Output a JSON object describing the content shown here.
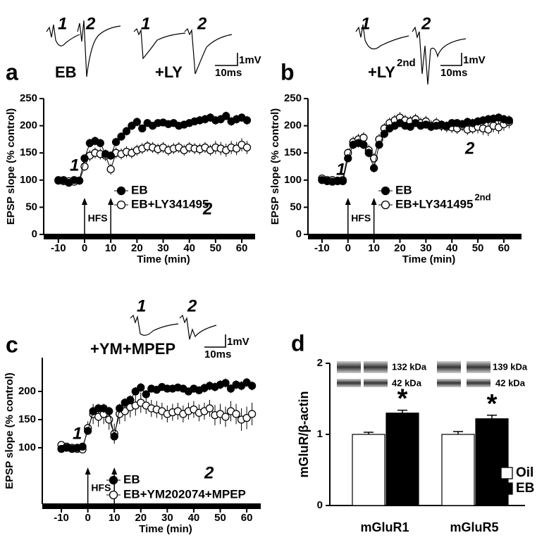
{
  "chart_data": [
    {
      "type": "line",
      "panel": "a",
      "x": [
        -10,
        -8,
        -6,
        -4,
        -2,
        0,
        2,
        4,
        6,
        8,
        10,
        12,
        14,
        16,
        18,
        20,
        22,
        24,
        26,
        28,
        30,
        32,
        34,
        36,
        38,
        40,
        42,
        44,
        46,
        48,
        50,
        52,
        54,
        56,
        58,
        60,
        62
      ],
      "xlim": [
        -15.6,
        65.1
      ],
      "ylim": [
        0,
        250
      ],
      "xticks": [
        -10,
        0,
        10,
        20,
        30,
        40,
        50,
        60
      ],
      "yticks": [
        0,
        50,
        100,
        150,
        200,
        250
      ],
      "xlabel": "Time (min)",
      "ylabel": "EPSP slope (% control)",
      "series": [
        {
          "name": "EB",
          "color": "#000000",
          "values": [
            99,
            100,
            95,
            100,
            99,
            140,
            168,
            172,
            168,
            148,
            145,
            170,
            180,
            190,
            200,
            207,
            195,
            205,
            200,
            205,
            206,
            203,
            205,
            200,
            202,
            205,
            208,
            210,
            212,
            215,
            210,
            212,
            218,
            208,
            212,
            215,
            210
          ],
          "errors": [
            4,
            4,
            4,
            4,
            4,
            6,
            8,
            8,
            8,
            8,
            8,
            8,
            8,
            8,
            8,
            8,
            7,
            7,
            7,
            7,
            7,
            7,
            7,
            7,
            7,
            7,
            7,
            8,
            8,
            8,
            8,
            8,
            8,
            8,
            8,
            8,
            8
          ]
        },
        {
          "name": "EB+LY341495",
          "color": "#ffffff",
          "values": [
            100,
            98,
            98,
            97,
            99,
            125,
            145,
            150,
            148,
            145,
            120,
            150,
            148,
            152,
            150,
            155,
            158,
            162,
            160,
            157,
            160,
            155,
            158,
            160,
            155,
            160,
            158,
            157,
            160,
            155,
            160,
            158,
            155,
            160,
            158,
            165,
            160
          ],
          "errors": [
            4,
            4,
            4,
            4,
            4,
            8,
            10,
            10,
            10,
            10,
            10,
            10,
            10,
            10,
            10,
            10,
            10,
            10,
            10,
            10,
            10,
            10,
            10,
            10,
            10,
            10,
            10,
            10,
            10,
            10,
            12,
            12,
            12,
            12,
            12,
            12,
            12
          ]
        }
      ],
      "stim_label": "HFS",
      "stim_times": [
        0,
        10
      ],
      "curve_labels": [
        "1",
        "2"
      ],
      "trace_numbers": [
        "1",
        "2",
        "1",
        "2"
      ],
      "trace_conditions": [
        "EB",
        "+LY"
      ],
      "scale_labels": [
        "1mV",
        "10ms"
      ]
    },
    {
      "type": "line",
      "panel": "b",
      "x": [
        -10,
        -8,
        -6,
        -4,
        -2,
        0,
        2,
        4,
        6,
        8,
        10,
        12,
        14,
        16,
        18,
        20,
        22,
        24,
        26,
        28,
        30,
        32,
        34,
        36,
        38,
        40,
        42,
        44,
        46,
        48,
        50,
        52,
        54,
        56,
        58,
        60,
        62
      ],
      "xlim": [
        -15.4,
        66.8
      ],
      "ylim": [
        0,
        250
      ],
      "xticks": [
        -10,
        0,
        10,
        20,
        30,
        40,
        50,
        60
      ],
      "yticks": [
        0,
        50,
        100,
        150,
        200,
        250
      ],
      "xlabel": "Time (min)",
      "ylabel": "EPSP slope (% control)",
      "series": [
        {
          "name": "EB",
          "color": "#000000",
          "values": [
            100,
            98,
            97,
            99,
            98,
            140,
            165,
            168,
            165,
            150,
            122,
            165,
            185,
            195,
            200,
            205,
            200,
            198,
            205,
            200,
            202,
            198,
            200,
            202,
            200,
            205,
            205,
            203,
            207,
            205,
            208,
            210,
            212,
            213,
            215,
            212,
            210
          ],
          "errors": [
            4,
            4,
            4,
            4,
            4,
            6,
            8,
            8,
            8,
            8,
            8,
            8,
            8,
            8,
            8,
            8,
            7,
            7,
            7,
            7,
            7,
            7,
            7,
            7,
            7,
            7,
            7,
            8,
            8,
            8,
            8,
            8,
            8,
            8,
            8,
            8,
            8
          ]
        },
        {
          "name": "EB+LY341495",
          "name_sup": "2nd",
          "color": "#ffffff",
          "values": [
            103,
            100,
            100,
            98,
            100,
            150,
            170,
            175,
            178,
            155,
            140,
            175,
            195,
            205,
            210,
            215,
            210,
            208,
            212,
            205,
            208,
            200,
            205,
            200,
            198,
            197,
            195,
            200,
            193,
            195,
            198,
            195,
            193,
            200,
            197,
            203,
            207
          ],
          "errors": [
            4,
            4,
            4,
            4,
            4,
            8,
            10,
            10,
            10,
            10,
            10,
            10,
            10,
            10,
            10,
            10,
            10,
            10,
            10,
            10,
            10,
            10,
            10,
            10,
            10,
            10,
            10,
            10,
            10,
            10,
            12,
            12,
            12,
            12,
            12,
            12,
            12
          ]
        }
      ],
      "stim_label": "HFS",
      "stim_times": [
        0,
        10
      ],
      "curve_labels": [
        "1",
        "2"
      ],
      "trace_numbers": [
        "1",
        "2"
      ],
      "trace_conditions": [
        "+LY"
      ],
      "condition_sup": "2nd",
      "scale_labels": [
        "1mV",
        "10ms"
      ]
    },
    {
      "type": "line",
      "panel": "c",
      "x": [
        -10,
        -8,
        -6,
        -4,
        -2,
        0,
        2,
        4,
        6,
        8,
        10,
        12,
        14,
        16,
        18,
        20,
        22,
        24,
        26,
        28,
        30,
        32,
        34,
        36,
        38,
        40,
        42,
        44,
        46,
        48,
        50,
        52,
        54,
        56,
        58,
        60,
        62
      ],
      "xlim": [
        -17.2,
        65.3
      ],
      "ylim": [
        0,
        260
      ],
      "xticks": [
        -10,
        0,
        10,
        20,
        30,
        40,
        50,
        60
      ],
      "yticks": [
        100,
        150,
        200
      ],
      "xlabel": "Time (min)",
      "ylabel": "EPSP slope (% control)",
      "series": [
        {
          "name": "EB",
          "color": "#000000",
          "values": [
            98,
            100,
            98,
            100,
            102,
            130,
            165,
            170,
            170,
            165,
            120,
            170,
            180,
            185,
            200,
            207,
            195,
            205,
            203,
            208,
            205,
            205,
            207,
            205,
            200,
            205,
            202,
            206,
            210,
            208,
            212,
            215,
            205,
            212,
            210,
            216,
            210
          ],
          "errors": [
            4,
            4,
            4,
            4,
            4,
            6,
            8,
            8,
            8,
            8,
            8,
            8,
            8,
            8,
            8,
            8,
            7,
            7,
            7,
            7,
            7,
            7,
            7,
            7,
            7,
            7,
            7,
            8,
            8,
            8,
            8,
            8,
            8,
            8,
            8,
            8,
            8
          ]
        },
        {
          "name": "EB+YM202074+MPEP",
          "color": "#ffffff",
          "values": [
            105,
            102,
            100,
            98,
            97,
            135,
            160,
            155,
            160,
            150,
            125,
            160,
            165,
            172,
            175,
            180,
            175,
            170,
            168,
            165,
            160,
            163,
            165,
            160,
            165,
            168,
            162,
            165,
            170,
            158,
            160,
            155,
            165,
            160,
            150,
            153,
            160
          ],
          "errors": [
            5,
            5,
            5,
            5,
            5,
            12,
            18,
            18,
            18,
            18,
            18,
            18,
            18,
            18,
            18,
            18,
            15,
            15,
            15,
            15,
            15,
            15,
            15,
            15,
            15,
            15,
            15,
            15,
            15,
            18,
            18,
            18,
            18,
            18,
            20,
            20,
            20
          ]
        }
      ],
      "stim_label": "HFS",
      "stim_times": [
        0,
        10
      ],
      "curve_labels": [
        "1",
        "2"
      ],
      "trace_numbers": [
        "1",
        "2"
      ],
      "trace_conditions": [
        "+YM+MPEP"
      ],
      "scale_labels": [
        "1mV",
        "10ms"
      ]
    },
    {
      "type": "bar",
      "panel": "d",
      "categories": [
        "mGluR1",
        "mGluR5"
      ],
      "series": [
        {
          "name": "Oil",
          "color": "#ffffff",
          "values": [
            1.0,
            1.0
          ],
          "errors": [
            0.03,
            0.04
          ]
        },
        {
          "name": "EB",
          "color": "#000000",
          "values": [
            1.3,
            1.22
          ],
          "errors": [
            0.04,
            0.05
          ]
        }
      ],
      "ylim": [
        0,
        2
      ],
      "yticks": [
        0,
        1,
        2
      ],
      "ylabel": "mGluR/β-actin",
      "significance": [
        "*",
        "*"
      ],
      "blot_labels": [
        "132 kDa",
        "42 kDa",
        "139 kDa",
        "42 kDa"
      ]
    }
  ]
}
